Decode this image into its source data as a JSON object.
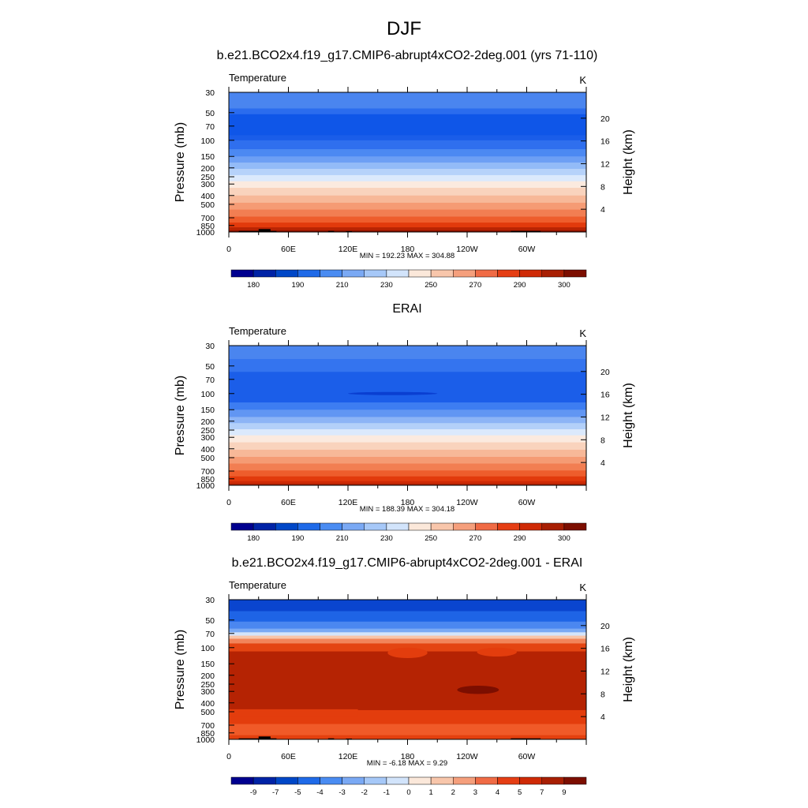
{
  "figure": {
    "title": "DJF"
  },
  "chart_data": [
    {
      "type": "heatmap",
      "title": "b.e21.BCO2x4.f19_g17.CMIP6-abrupt4xCO2-2deg.001 (yrs 71-110)",
      "variable": "Temperature",
      "units": "K",
      "ylabel_left": "Pressure (mb)",
      "ylabel_right": "Height (km)",
      "x_ticks": [
        "0",
        "60E",
        "120E",
        "180",
        "120W",
        "60W"
      ],
      "pressure_ticks": [
        "30",
        "50",
        "70",
        "100",
        "150",
        "200",
        "250",
        "300",
        "400",
        "500",
        "700",
        "850",
        "1000"
      ],
      "height_ticks": [
        "20",
        "16",
        "12",
        "8",
        "4"
      ],
      "stats": "MIN = 192.23  MAX = 304.88",
      "min": 192.23,
      "max": 304.88,
      "colorbar_labels": [
        "180",
        "190",
        "210",
        "230",
        "250",
        "270",
        "290",
        "300"
      ],
      "colors": [
        "#00008f",
        "#0023a6",
        "#0047c7",
        "#1f6ae8",
        "#4a8cf2",
        "#7aa9f4",
        "#a6c8f8",
        "#d2e4fb",
        "#fbe8da",
        "#f8c6ab",
        "#f59f7c",
        "#f06b45",
        "#e53e14",
        "#cf2a06",
        "#a81f03",
        "#7c0e00"
      ],
      "bands": [
        {
          "top_mb": 30,
          "bottom_mb": 45,
          "color": "#4a85ef"
        },
        {
          "top_mb": 45,
          "bottom_mb": 52,
          "color": "#2b6cee"
        },
        {
          "top_mb": 52,
          "bottom_mb": 88,
          "color": "#0f56e8"
        },
        {
          "top_mb": 88,
          "bottom_mb": 100,
          "color": "#1a5de9"
        },
        {
          "top_mb": 100,
          "bottom_mb": 125,
          "color": "#2f6fee"
        },
        {
          "top_mb": 125,
          "bottom_mb": 150,
          "color": "#4c89f2"
        },
        {
          "top_mb": 150,
          "bottom_mb": 175,
          "color": "#6d9ff4"
        },
        {
          "top_mb": 175,
          "bottom_mb": 205,
          "color": "#93bbf7"
        },
        {
          "top_mb": 205,
          "bottom_mb": 240,
          "color": "#b6d2fa"
        },
        {
          "top_mb": 240,
          "bottom_mb": 280,
          "color": "#dbe9fc"
        },
        {
          "top_mb": 280,
          "bottom_mb": 330,
          "color": "#fbeadf"
        },
        {
          "top_mb": 330,
          "bottom_mb": 400,
          "color": "#f9d3bd"
        },
        {
          "top_mb": 400,
          "bottom_mb": 480,
          "color": "#f7b898"
        },
        {
          "top_mb": 480,
          "bottom_mb": 570,
          "color": "#f59b74"
        },
        {
          "top_mb": 570,
          "bottom_mb": 680,
          "color": "#f27e52"
        },
        {
          "top_mb": 680,
          "bottom_mb": 790,
          "color": "#ee5d2c"
        },
        {
          "top_mb": 790,
          "bottom_mb": 890,
          "color": "#e23a0c"
        },
        {
          "top_mb": 890,
          "bottom_mb": 1000,
          "color": "#b82403"
        }
      ],
      "features": [
        {
          "lon_from": 0,
          "lon_to": 360,
          "p_top": 960,
          "p_bottom": 1000,
          "color": "#8b1200"
        },
        {
          "lon_from": 10,
          "lon_to": 48,
          "p_top": 975,
          "p_bottom": 1000,
          "color": "#000000"
        },
        {
          "lon_from": 30,
          "lon_to": 42,
          "p_top": 930,
          "p_bottom": 980,
          "color": "#000000"
        },
        {
          "lon_from": 100,
          "lon_to": 106,
          "p_top": 975,
          "p_bottom": 1000,
          "color": "#000000"
        },
        {
          "lon_from": 118,
          "lon_to": 124,
          "p_top": 980,
          "p_bottom": 1000,
          "color": "#000000"
        },
        {
          "lon_from": 284,
          "lon_to": 314,
          "p_top": 975,
          "p_bottom": 1000,
          "color": "#000000"
        }
      ]
    },
    {
      "type": "heatmap",
      "title": "ERAI",
      "variable": "Temperature",
      "units": "K",
      "ylabel_left": "Pressure (mb)",
      "ylabel_right": "Height (km)",
      "x_ticks": [
        "0",
        "60E",
        "120E",
        "180",
        "120W",
        "60W"
      ],
      "pressure_ticks": [
        "30",
        "50",
        "70",
        "100",
        "150",
        "200",
        "250",
        "300",
        "400",
        "500",
        "700",
        "850",
        "1000"
      ],
      "height_ticks": [
        "20",
        "16",
        "12",
        "8",
        "4"
      ],
      "stats": "MIN = 188.39  MAX = 304.18",
      "min": 188.39,
      "max": 304.18,
      "colorbar_labels": [
        "180",
        "190",
        "210",
        "230",
        "250",
        "270",
        "290",
        "300"
      ],
      "colors": [
        "#00008f",
        "#0023a6",
        "#0047c7",
        "#1f6ae8",
        "#4a8cf2",
        "#7aa9f4",
        "#a6c8f8",
        "#d2e4fb",
        "#fbe8da",
        "#f8c6ab",
        "#f59f7c",
        "#f06b45",
        "#e53e14",
        "#cf2a06",
        "#a81f03",
        "#7c0e00"
      ],
      "bands": [
        {
          "top_mb": 30,
          "bottom_mb": 42,
          "color": "#4a85ef"
        },
        {
          "top_mb": 42,
          "bottom_mb": 58,
          "color": "#3474ef"
        },
        {
          "top_mb": 58,
          "bottom_mb": 125,
          "color": "#1b5ee9"
        },
        {
          "top_mb": 125,
          "bottom_mb": 150,
          "color": "#3d7df1"
        },
        {
          "top_mb": 150,
          "bottom_mb": 180,
          "color": "#6196f3"
        },
        {
          "top_mb": 180,
          "bottom_mb": 210,
          "color": "#8cb4f6"
        },
        {
          "top_mb": 210,
          "bottom_mb": 245,
          "color": "#b3d0f9"
        },
        {
          "top_mb": 245,
          "bottom_mb": 285,
          "color": "#dbe9fc"
        },
        {
          "top_mb": 285,
          "bottom_mb": 340,
          "color": "#fbeadf"
        },
        {
          "top_mb": 340,
          "bottom_mb": 410,
          "color": "#f9d3bd"
        },
        {
          "top_mb": 410,
          "bottom_mb": 490,
          "color": "#f7b898"
        },
        {
          "top_mb": 490,
          "bottom_mb": 580,
          "color": "#f59b74"
        },
        {
          "top_mb": 580,
          "bottom_mb": 690,
          "color": "#f27e52"
        },
        {
          "top_mb": 690,
          "bottom_mb": 800,
          "color": "#ee5d2c"
        },
        {
          "top_mb": 800,
          "bottom_mb": 900,
          "color": "#e23a0c"
        },
        {
          "top_mb": 900,
          "bottom_mb": 1000,
          "color": "#cf2a06"
        }
      ],
      "features": [
        {
          "lon_from": 0,
          "lon_to": 360,
          "p_top": 955,
          "p_bottom": 1000,
          "color": "#b52303"
        },
        {
          "lon_from": 120,
          "lon_to": 210,
          "p_top": 96,
          "p_bottom": 104,
          "color": "#0a3fd1",
          "shape": "ellipse"
        }
      ]
    },
    {
      "type": "heatmap",
      "title": "b.e21.BCO2x4.f19_g17.CMIP6-abrupt4xCO2-2deg.001 - ERAI",
      "variable": "Temperature",
      "units": "K",
      "ylabel_left": "Pressure (mb)",
      "ylabel_right": "Height (km)",
      "x_ticks": [
        "0",
        "60E",
        "120E",
        "180",
        "120W",
        "60W"
      ],
      "pressure_ticks": [
        "30",
        "50",
        "70",
        "100",
        "150",
        "200",
        "250",
        "300",
        "400",
        "500",
        "700",
        "850",
        "1000"
      ],
      "height_ticks": [
        "20",
        "16",
        "12",
        "8",
        "4"
      ],
      "stats": "MIN =  -6.18  MAX =   9.29",
      "min": -6.18,
      "max": 9.29,
      "colorbar_labels": [
        "-9",
        "-7",
        "-5",
        "-4",
        "-3",
        "-2",
        "-1",
        "0",
        "1",
        "2",
        "3",
        "4",
        "5",
        "7",
        "9"
      ],
      "colors": [
        "#00008f",
        "#0023a6",
        "#0047c7",
        "#1f6ae8",
        "#4a8cf2",
        "#7aa9f4",
        "#a6c8f8",
        "#d2e4fb",
        "#fbe8da",
        "#f8c6ab",
        "#f59f7c",
        "#f06b45",
        "#e53e14",
        "#cf2a06",
        "#a81f03",
        "#7c0e00"
      ],
      "bands": [
        {
          "top_mb": 30,
          "bottom_mb": 40,
          "color": "#0a45cf"
        },
        {
          "top_mb": 40,
          "bottom_mb": 52,
          "color": "#1e64e6"
        },
        {
          "top_mb": 52,
          "bottom_mb": 62,
          "color": "#4b87f0"
        },
        {
          "top_mb": 62,
          "bottom_mb": 68,
          "color": "#7aa9f4"
        },
        {
          "top_mb": 68,
          "bottom_mb": 74,
          "color": "#d4e4fb"
        },
        {
          "top_mb": 74,
          "bottom_mb": 80,
          "color": "#f8c4a8"
        },
        {
          "top_mb": 80,
          "bottom_mb": 90,
          "color": "#f2855a"
        },
        {
          "top_mb": 90,
          "bottom_mb": 110,
          "color": "#e44512"
        },
        {
          "top_mb": 110,
          "bottom_mb": 480,
          "color": "#b52303"
        },
        {
          "top_mb": 480,
          "bottom_mb": 680,
          "color": "#e33d0d"
        },
        {
          "top_mb": 680,
          "bottom_mb": 900,
          "color": "#f05a28"
        },
        {
          "top_mb": 900,
          "bottom_mb": 1000,
          "color": "#e4400f"
        }
      ],
      "features": [
        {
          "lon_from": 160,
          "lon_to": 200,
          "p_top": 100,
          "p_bottom": 130,
          "color": "#e33d0d",
          "shape": "ellipse"
        },
        {
          "lon_from": 250,
          "lon_to": 290,
          "p_top": 100,
          "p_bottom": 125,
          "color": "#e33d0d",
          "shape": "ellipse"
        },
        {
          "lon_from": 230,
          "lon_to": 272,
          "p_top": 260,
          "p_bottom": 320,
          "color": "#7c0e00",
          "shape": "ellipse"
        },
        {
          "lon_from": 0,
          "lon_to": 130,
          "p_top": 470,
          "p_bottom": 560,
          "color": "#e33d0d"
        },
        {
          "lon_from": 10,
          "lon_to": 48,
          "p_top": 975,
          "p_bottom": 1000,
          "color": "#000000"
        },
        {
          "lon_from": 30,
          "lon_to": 42,
          "p_top": 930,
          "p_bottom": 980,
          "color": "#000000"
        },
        {
          "lon_from": 100,
          "lon_to": 106,
          "p_top": 975,
          "p_bottom": 1000,
          "color": "#000000"
        },
        {
          "lon_from": 118,
          "lon_to": 124,
          "p_top": 980,
          "p_bottom": 1000,
          "color": "#000000"
        },
        {
          "lon_from": 284,
          "lon_to": 314,
          "p_top": 975,
          "p_bottom": 1000,
          "color": "#000000"
        }
      ]
    }
  ]
}
